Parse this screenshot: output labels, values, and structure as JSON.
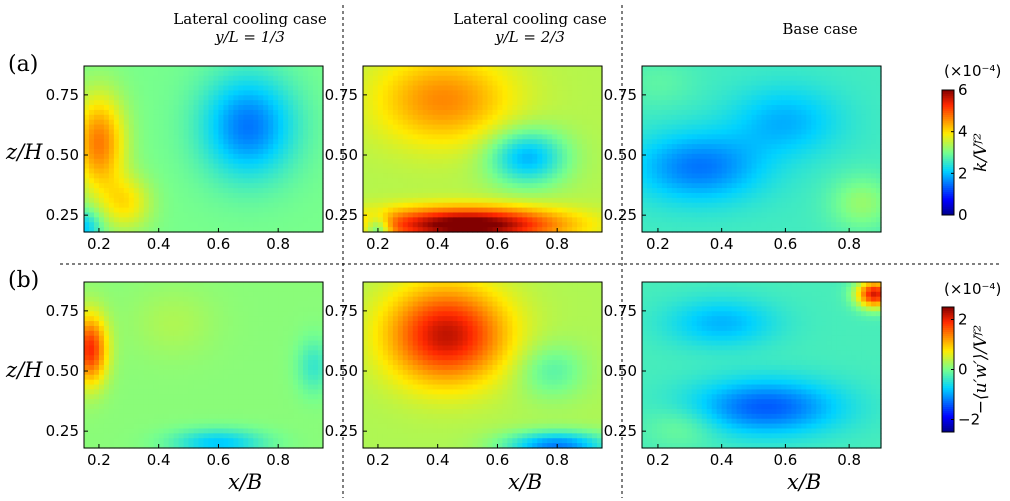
{
  "column_headers": [
    {
      "line1": "Lateral cooling case",
      "line2": "y/L = 1/3"
    },
    {
      "line1": "Lateral cooling case",
      "line2": "y/L = 2/3"
    },
    {
      "line1": "Base case",
      "line2": ""
    }
  ],
  "row_labels": [
    "(a)",
    "(b)"
  ],
  "y_axis_title": "z/H",
  "x_axis_title": "x/B",
  "colorbars": [
    {
      "unit": "(×10⁻⁴)",
      "title": "k/V_f^2",
      "ticks": [
        "6",
        "4",
        "2",
        "0"
      ],
      "range": [
        0,
        6
      ]
    },
    {
      "unit": "(×10⁻⁴)",
      "title": "−⟨u′w′⟩/V_f^2",
      "ticks": [
        "2",
        "0",
        "−2"
      ],
      "range": [
        -2.5,
        2.5
      ]
    }
  ],
  "chart_data": [
    {
      "type": "heatmap",
      "panel": "a1",
      "variable": "k/V_f^2 (×10^-4)",
      "xlim": [
        0.15,
        0.95
      ],
      "ylim": [
        0.18,
        0.87
      ],
      "xticks": [
        "0.2",
        "0.4",
        "0.6",
        "0.8"
      ],
      "yticks": [
        "0.25",
        "0.50",
        "0.75"
      ],
      "base": 3.0,
      "blobs": [
        {
          "x": 0.2,
          "y": 0.55,
          "sx": 0.06,
          "sy": 0.14,
          "a": 1.7
        },
        {
          "x": 0.29,
          "y": 0.3,
          "sx": 0.06,
          "sy": 0.08,
          "a": 0.9
        },
        {
          "x": 0.7,
          "y": 0.62,
          "sx": 0.11,
          "sy": 0.15,
          "a": -1.5
        },
        {
          "x": 0.15,
          "y": 0.2,
          "sx": 0.04,
          "sy": 0.05,
          "a": -1.0
        }
      ]
    },
    {
      "type": "heatmap",
      "panel": "a2",
      "variable": "k/V_f^2 (×10^-4)",
      "xlim": [
        0.15,
        0.95
      ],
      "ylim": [
        0.18,
        0.87
      ],
      "xticks": [
        "0.2",
        "0.4",
        "0.6",
        "0.8"
      ],
      "yticks": [
        "0.25",
        "0.50",
        "0.75"
      ],
      "base": 3.4,
      "blobs": [
        {
          "x": 0.5,
          "y": 0.21,
          "sx": 0.22,
          "sy": 0.05,
          "a": 2.9
        },
        {
          "x": 0.42,
          "y": 0.73,
          "sx": 0.16,
          "sy": 0.13,
          "a": 1.2
        },
        {
          "x": 0.7,
          "y": 0.49,
          "sx": 0.09,
          "sy": 0.08,
          "a": -1.5
        },
        {
          "x": 0.2,
          "y": 0.19,
          "sx": 0.03,
          "sy": 0.04,
          "a": -1.3
        }
      ]
    },
    {
      "type": "heatmap",
      "panel": "a3",
      "variable": "k/V_f^2 (×10^-4)",
      "xlim": [
        0.15,
        0.9
      ],
      "ylim": [
        0.18,
        0.87
      ],
      "xticks": [
        "0.2",
        "0.4",
        "0.6",
        "0.8"
      ],
      "yticks": [
        "0.25",
        "0.50",
        "0.75"
      ],
      "base": 2.6,
      "blobs": [
        {
          "x": 0.33,
          "y": 0.45,
          "sx": 0.14,
          "sy": 0.1,
          "a": -1.1
        },
        {
          "x": 0.6,
          "y": 0.64,
          "sx": 0.12,
          "sy": 0.1,
          "a": -0.7
        },
        {
          "x": 0.84,
          "y": 0.3,
          "sx": 0.07,
          "sy": 0.08,
          "a": 0.6
        },
        {
          "x": 0.2,
          "y": 0.8,
          "sx": 0.08,
          "sy": 0.07,
          "a": 0.2
        }
      ]
    },
    {
      "type": "heatmap",
      "panel": "b1",
      "variable": "-<u'w'>/V_f^2 (×10^-4)",
      "xlim": [
        0.15,
        0.95
      ],
      "ylim": [
        0.18,
        0.87
      ],
      "xticks": [
        "0.2",
        "0.4",
        "0.6",
        "0.8"
      ],
      "yticks": [
        "0.25",
        "0.50",
        "0.75"
      ],
      "base": 0.1,
      "blobs": [
        {
          "x": 0.17,
          "y": 0.59,
          "sx": 0.04,
          "sy": 0.1,
          "a": 1.8
        },
        {
          "x": 0.6,
          "y": 0.2,
          "sx": 0.11,
          "sy": 0.04,
          "a": -0.9
        },
        {
          "x": 0.92,
          "y": 0.52,
          "sx": 0.04,
          "sy": 0.08,
          "a": -0.5
        },
        {
          "x": 0.45,
          "y": 0.7,
          "sx": 0.1,
          "sy": 0.1,
          "a": 0.2
        }
      ]
    },
    {
      "type": "heatmap",
      "panel": "b2",
      "variable": "-<u'w'>/V_f^2 (×10^-4)",
      "xlim": [
        0.15,
        0.95
      ],
      "ylim": [
        0.18,
        0.87
      ],
      "xticks": [
        "0.2",
        "0.4",
        "0.6",
        "0.8"
      ],
      "yticks": [
        "0.25",
        "0.50",
        "0.75"
      ],
      "base": 0.3,
      "blobs": [
        {
          "x": 0.43,
          "y": 0.65,
          "sx": 0.14,
          "sy": 0.14,
          "a": 1.9
        },
        {
          "x": 0.8,
          "y": 0.19,
          "sx": 0.12,
          "sy": 0.04,
          "a": -1.5
        },
        {
          "x": 0.78,
          "y": 0.5,
          "sx": 0.08,
          "sy": 0.08,
          "a": -0.5
        }
      ]
    },
    {
      "type": "heatmap",
      "panel": "b3",
      "variable": "-<u'w'>/V_f^2 (×10^-4)",
      "xlim": [
        0.15,
        0.9
      ],
      "ylim": [
        0.18,
        0.87
      ],
      "xticks": [
        "0.2",
        "0.4",
        "0.6",
        "0.8"
      ],
      "yticks": [
        "0.25",
        "0.50",
        "0.75"
      ],
      "base": -0.3,
      "blobs": [
        {
          "x": 0.54,
          "y": 0.35,
          "sx": 0.16,
          "sy": 0.08,
          "a": -1.1
        },
        {
          "x": 0.4,
          "y": 0.7,
          "sx": 0.12,
          "sy": 0.07,
          "a": -0.6
        },
        {
          "x": 0.88,
          "y": 0.82,
          "sx": 0.04,
          "sy": 0.04,
          "a": 2.4
        },
        {
          "x": 0.28,
          "y": 0.27,
          "sx": 0.08,
          "sy": 0.06,
          "a": 0.3
        }
      ]
    }
  ]
}
